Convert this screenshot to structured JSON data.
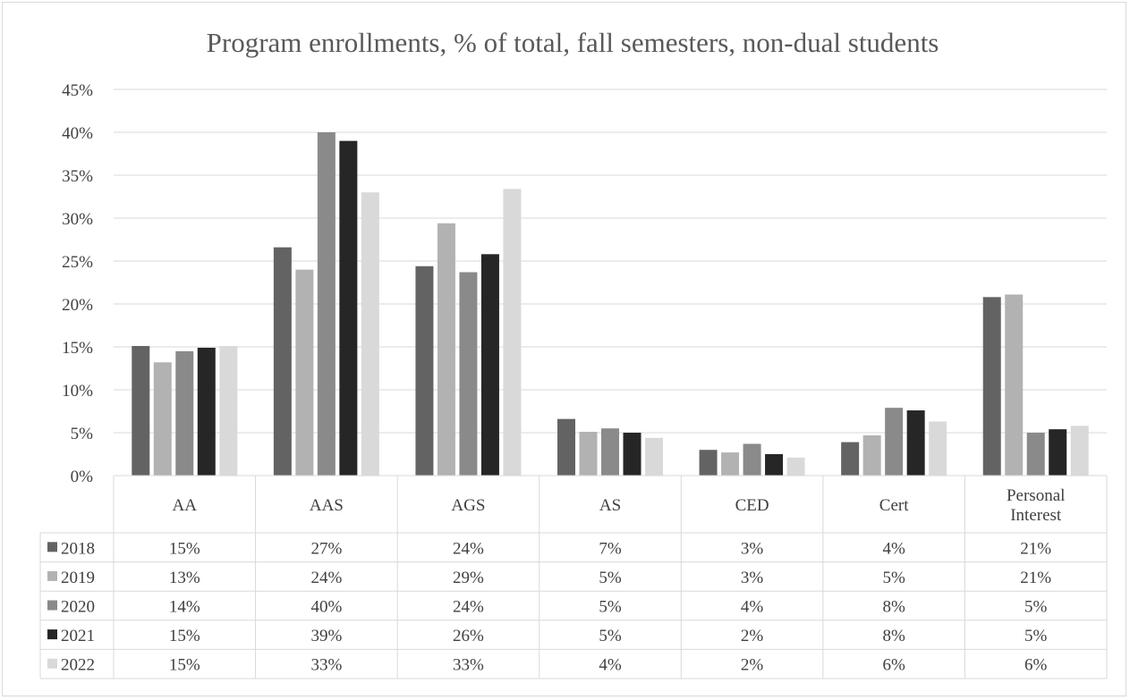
{
  "chart_data": {
    "type": "bar",
    "title": "Program enrollments, % of total, fall semesters, non-dual students",
    "categories": [
      "AA",
      "AAS",
      "AGS",
      "AS",
      "CED",
      "Cert",
      "Personal Interest"
    ],
    "category_display": [
      [
        "AA"
      ],
      [
        "AAS"
      ],
      [
        "AGS"
      ],
      [
        "AS"
      ],
      [
        "CED"
      ],
      [
        "Cert"
      ],
      [
        "Personal",
        "Interest"
      ]
    ],
    "ylim": [
      0,
      45
    ],
    "yticks": [
      0,
      5,
      10,
      15,
      20,
      25,
      30,
      35,
      40,
      45
    ],
    "ytick_labels": [
      "0%",
      "5%",
      "10%",
      "15%",
      "20%",
      "25%",
      "30%",
      "35%",
      "40%",
      "45%"
    ],
    "grid": true,
    "legend": "data-table-rows",
    "series": [
      {
        "name": "2018",
        "color": "#636363",
        "values": [
          15.1,
          26.6,
          24.4,
          6.6,
          3.0,
          3.9,
          20.8
        ],
        "labels": [
          "15%",
          "27%",
          "24%",
          "7%",
          "3%",
          "4%",
          "21%"
        ]
      },
      {
        "name": "2019",
        "color": "#b2b2b2",
        "values": [
          13.2,
          24.0,
          29.4,
          5.1,
          2.7,
          4.7,
          21.1
        ],
        "labels": [
          "13%",
          "24%",
          "29%",
          "5%",
          "3%",
          "5%",
          "21%"
        ]
      },
      {
        "name": "2020",
        "color": "#8a8a8a",
        "values": [
          14.5,
          40.0,
          23.7,
          5.5,
          3.7,
          7.9,
          5.0
        ],
        "labels": [
          "14%",
          "40%",
          "24%",
          "5%",
          "4%",
          "8%",
          "5%"
        ]
      },
      {
        "name": "2021",
        "color": "#262626",
        "values": [
          14.9,
          39.0,
          25.8,
          5.0,
          2.5,
          7.6,
          5.4
        ],
        "labels": [
          "15%",
          "39%",
          "26%",
          "5%",
          "2%",
          "8%",
          "5%"
        ]
      },
      {
        "name": "2022",
        "color": "#d9d9d9",
        "values": [
          15.1,
          33.0,
          33.4,
          4.4,
          2.1,
          6.3,
          5.8
        ],
        "labels": [
          "15%",
          "33%",
          "33%",
          "4%",
          "2%",
          "6%",
          "6%"
        ]
      }
    ]
  }
}
